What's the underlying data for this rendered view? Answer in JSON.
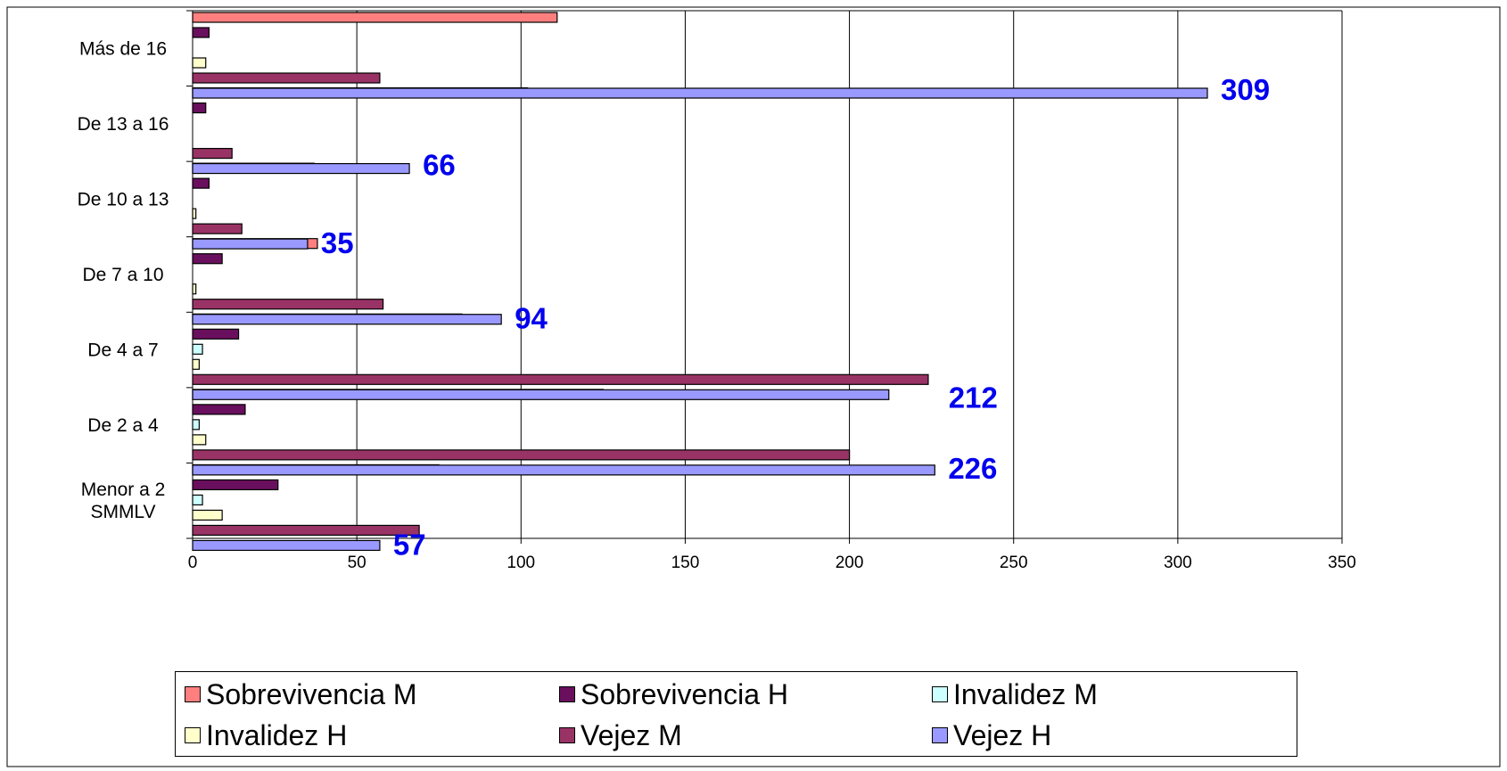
{
  "chart_data": {
    "type": "bar",
    "orientation": "horizontal",
    "categories": [
      "Menor a 2 SMMLV",
      "De 2 a 4",
      "De 4 a 7",
      "De 7 a 10",
      "De 10 a 13",
      "De 13 a 16",
      "Más de 16"
    ],
    "category_lines": [
      [
        "Menor a 2",
        "SMMLV"
      ],
      [
        "De 2 a 4"
      ],
      [
        "De 4 a 7"
      ],
      [
        "De 7 a 10"
      ],
      [
        "De 10 a 13"
      ],
      [
        "De 13 a 16"
      ],
      [
        "Más de 16"
      ]
    ],
    "series": [
      {
        "name": "Sobrevivencia M",
        "color": "#ff7f7f",
        "values": [
          75,
          125,
          82,
          38,
          37,
          102,
          111
        ]
      },
      {
        "name": "Sobrevivencia H",
        "color": "#6a0f5e",
        "values": [
          26,
          16,
          14,
          9,
          5,
          4,
          5
        ]
      },
      {
        "name": "Invalidez M",
        "color": "#ccffff",
        "values": [
          3,
          2,
          3,
          0,
          0,
          0,
          0
        ]
      },
      {
        "name": "Invalidez H",
        "color": "#ffffcc",
        "values": [
          9,
          4,
          2,
          1,
          1,
          0,
          4
        ]
      },
      {
        "name": "Vejez M",
        "color": "#993366",
        "values": [
          69,
          200,
          224,
          58,
          15,
          12,
          57
        ]
      },
      {
        "name": "Vejez H",
        "color": "#9999ff",
        "values": [
          57,
          226,
          212,
          94,
          35,
          66,
          309
        ]
      }
    ],
    "data_labels": {
      "series": "Vejez H",
      "values": [
        "57",
        "226",
        "212",
        "94",
        "35",
        "66",
        "309"
      ],
      "color": "#0000ee"
    },
    "x_ticks": [
      "0",
      "50",
      "100",
      "150",
      "200",
      "250",
      "300",
      "350"
    ],
    "xlim": [
      0,
      350
    ],
    "grid": "vertical",
    "legend_position": "bottom"
  }
}
